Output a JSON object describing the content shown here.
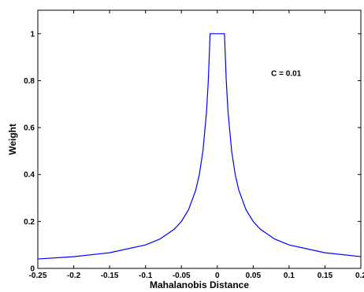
{
  "chart_data": {
    "type": "line",
    "title": "",
    "xlabel": "Mahalanobis Distance",
    "ylabel": "Weight",
    "xlim": [
      -0.25,
      0.2
    ],
    "ylim": [
      0,
      1.1
    ],
    "grid": false,
    "x_ticks": [
      "-0.25",
      "-0.2",
      "-0.15",
      "-0.1",
      "-0.05",
      "0",
      "0.05",
      "0.1",
      "0.15",
      "0.2"
    ],
    "y_ticks": [
      "0",
      "0.2",
      "0.4",
      "0.6",
      "0.8",
      "1"
    ],
    "annotation": "C = 0.01",
    "series": [
      {
        "color": "#0000ff",
        "x": [
          -0.25,
          -0.2,
          -0.15,
          -0.1,
          -0.08,
          -0.06,
          -0.05,
          -0.04,
          -0.03,
          -0.025,
          -0.02,
          -0.015,
          -0.0125,
          -0.01,
          -0.01,
          0.01,
          0.01,
          0.0125,
          0.015,
          0.02,
          0.025,
          0.03,
          0.04,
          0.05,
          0.06,
          0.08,
          0.1,
          0.15,
          0.2
        ],
        "y": [
          0.04,
          0.05,
          0.0667,
          0.1,
          0.125,
          0.1667,
          0.2,
          0.25,
          0.3333,
          0.4,
          0.5,
          0.6667,
          0.8,
          1.0,
          1.0,
          1.0,
          1.0,
          0.8,
          0.6667,
          0.5,
          0.4,
          0.3333,
          0.25,
          0.2,
          0.1667,
          0.125,
          0.1,
          0.0667,
          0.05
        ]
      }
    ]
  }
}
